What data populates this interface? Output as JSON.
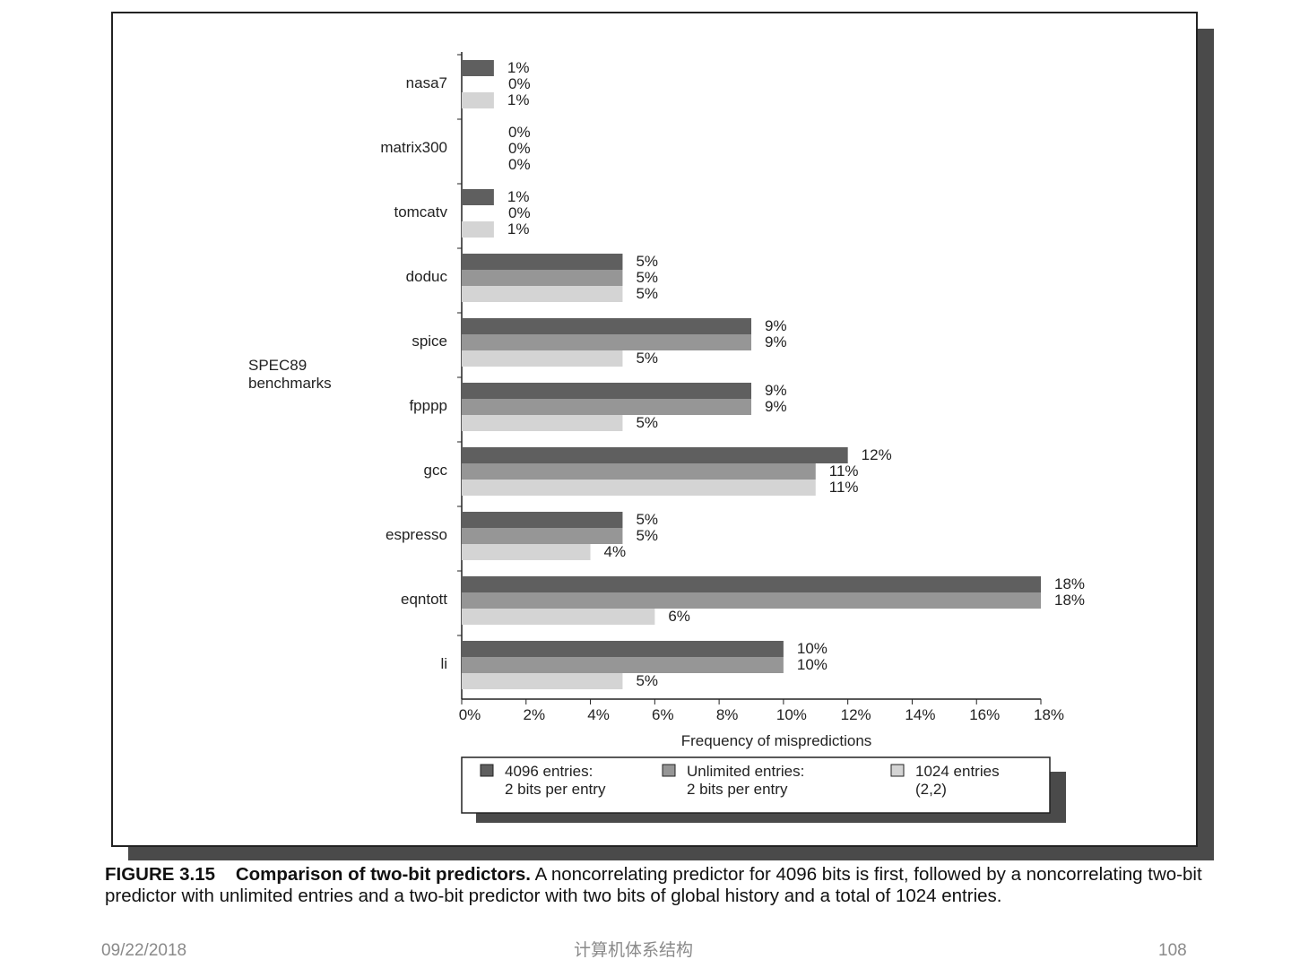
{
  "chart_data": {
    "type": "bar",
    "orientation": "horizontal",
    "ylabel": "SPEC89 benchmarks",
    "ylabel_lines": [
      "SPEC89",
      "benchmarks"
    ],
    "xlabel": "Frequency of mispredictions",
    "xlim": [
      0,
      18
    ],
    "xticks": [
      "0%",
      "2%",
      "4%",
      "6%",
      "8%",
      "10%",
      "12%",
      "14%",
      "16%",
      "18%"
    ],
    "categories": [
      "nasa7",
      "matrix300",
      "tomcatv",
      "doduc",
      "spice",
      "fpppp",
      "gcc",
      "espresso",
      "eqntott",
      "li"
    ],
    "series": [
      {
        "name": "4096 entries: 2 bits per entry",
        "legend_lines": [
          "4096 entries:",
          "2 bits per entry"
        ],
        "color": "#5f5f5f",
        "values": [
          1,
          0,
          1,
          5,
          9,
          9,
          12,
          5,
          18,
          10
        ]
      },
      {
        "name": "Unlimited entries: 2 bits per entry",
        "legend_lines": [
          "Unlimited entries:",
          "2 bits per entry"
        ],
        "color": "#969696",
        "values": [
          0,
          0,
          0,
          5,
          9,
          9,
          11,
          5,
          18,
          10
        ]
      },
      {
        "name": "1024 entries (2,2)",
        "legend_lines": [
          "1024 entries",
          "(2,2)"
        ],
        "color": "#d4d4d4",
        "values": [
          1,
          0,
          1,
          5,
          5,
          5,
          11,
          4,
          6,
          5
        ]
      }
    ],
    "legend": "bottom",
    "grid": false
  },
  "caption": {
    "label": "FIGURE 3.15",
    "title": "Comparison of two-bit predictors.",
    "text": "A noncorrelating predictor for 4096 bits is first, followed by a noncorrelating two-bit predictor with unlimited entries and a two-bit predictor with two bits of global history and a total of 1024 entries."
  },
  "footer": {
    "date": "09/22/2018",
    "course": "计算机体系结构",
    "page": "108"
  }
}
